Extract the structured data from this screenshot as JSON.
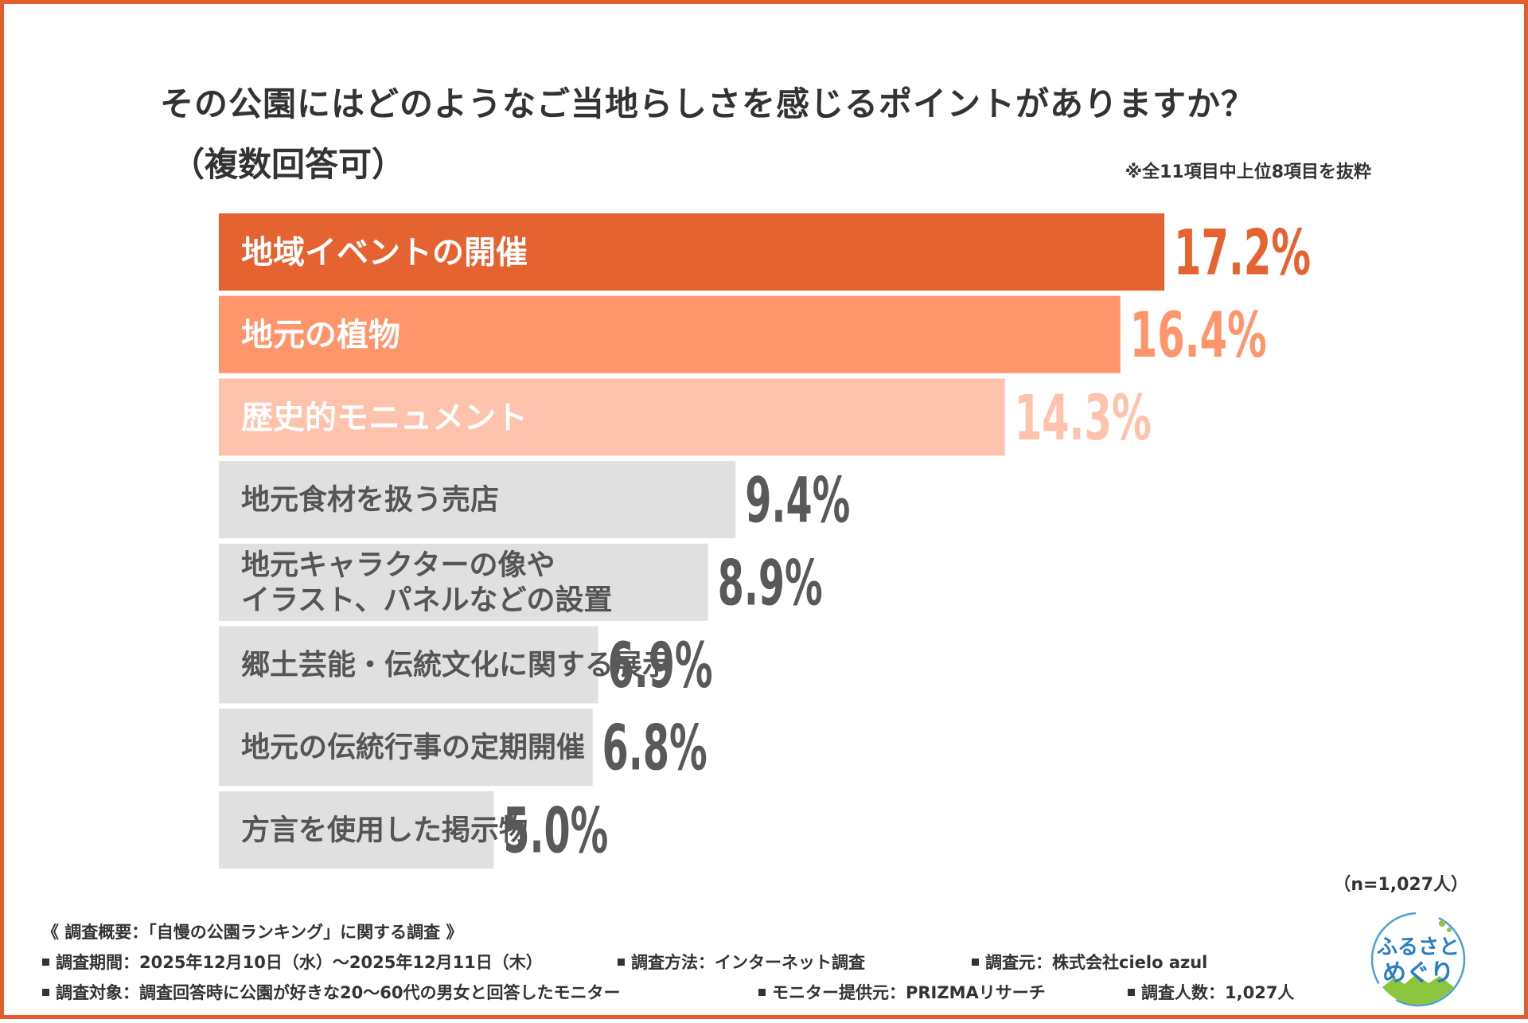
{
  "title_line1": "その公園にはどのようなご当地らしさを感じるポイントがありますか？",
  "title_line2": "（複数回答可）",
  "note": "※全11項目中上位8項目を抜粋",
  "sample_size": "（n=1,027人）",
  "colors": {
    "bar1": "#e56231",
    "bar2": "#ff956b",
    "bar3": "#ffc2ac",
    "bar_gray": "#e0e0e0",
    "value_gray": "#595959",
    "frame": "#e05f2c"
  },
  "chart_data": {
    "type": "bar",
    "orientation": "horizontal",
    "title": "その公園にはどのようなご当地らしさを感じるポイントがありますか？（複数回答可）",
    "unit": "%",
    "categories": [
      [
        "地域イベントの開催"
      ],
      [
        "地元の植物"
      ],
      [
        "歴史的モニュメント"
      ],
      [
        "地元食材を扱う売店"
      ],
      [
        "地元キャラクターの像や",
        "イラスト、パネルなどの設置"
      ],
      [
        "郷土芸能・伝統文化に関する展示"
      ],
      [
        "地元の伝統行事の定期開催"
      ],
      [
        "方言を使用した掲示物"
      ]
    ],
    "values": [
      17.2,
      16.4,
      14.3,
      9.4,
      8.9,
      6.9,
      6.8,
      5.0
    ],
    "value_labels": [
      "17.2%",
      "16.4%",
      "14.3%",
      "9.4%",
      "8.9%",
      "6.9%",
      "6.8%",
      "5.0%"
    ],
    "xlim": [
      0,
      17.2
    ]
  },
  "survey": {
    "heading": "《 調査概要：「自慢の公園ランキング」に関する調査 》",
    "period": "調査期間：2025年12月10日（水）～2025年12月11日（木）",
    "method": "調査方法：インターネット調査",
    "source": "調査元：株式会社cielo azul",
    "target": "調査対象：調査回答時に公園が好きな20～60代の男女と回答したモニター",
    "provider": "モニター提供元：PRIZMAリサーチ",
    "count": "調査人数：1,027人"
  },
  "logo": {
    "line1": "ふるさと",
    "line2": "めぐり"
  }
}
